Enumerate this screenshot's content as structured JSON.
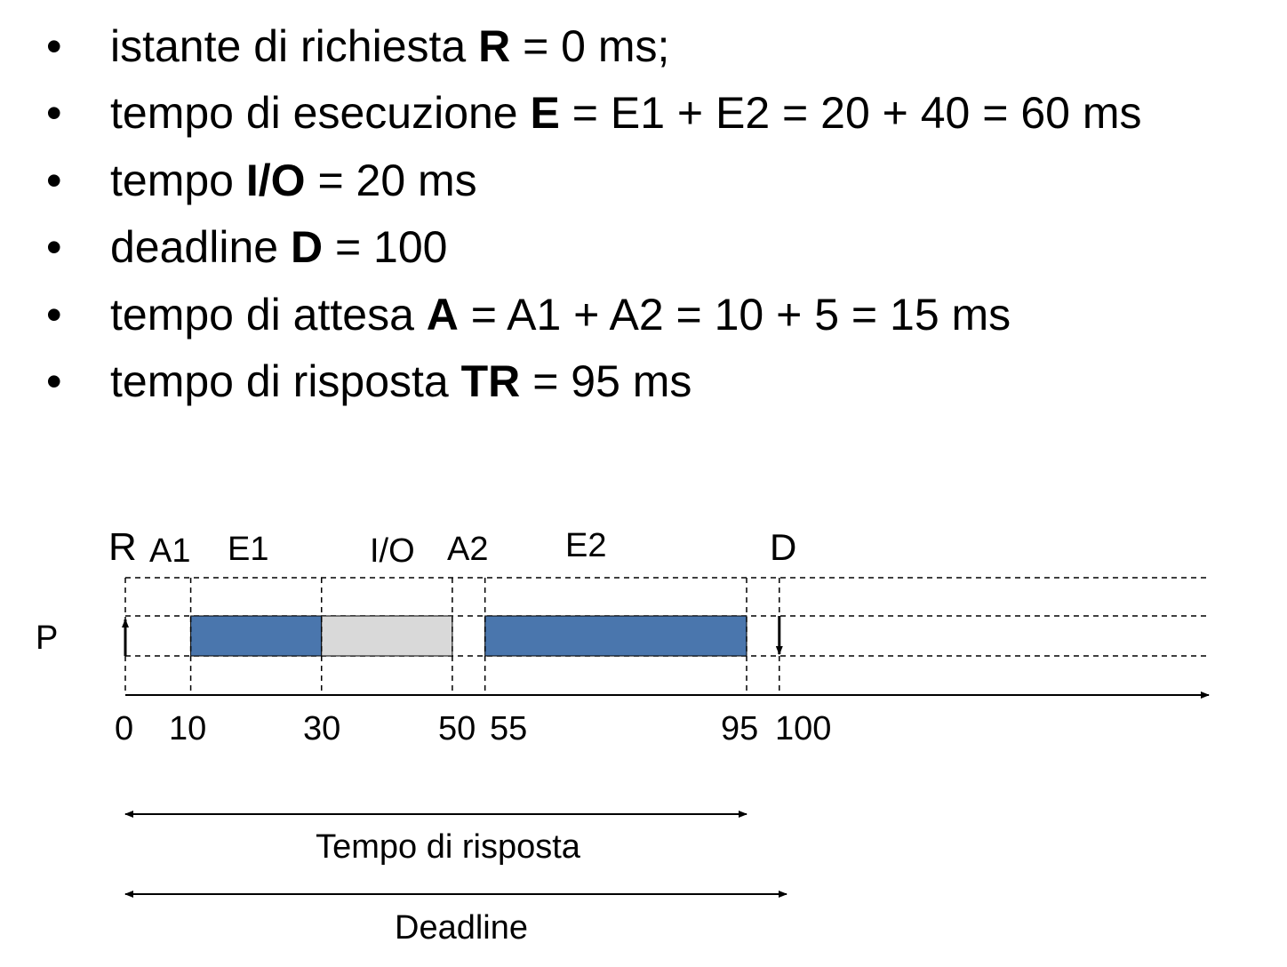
{
  "bullets": [
    {
      "pre": "istante di richiesta ",
      "bold": "R",
      "post": " = 0 ms;"
    },
    {
      "pre": "tempo di esecuzione ",
      "bold": "E",
      "post": " = E1 + E2 = 20 + 40 = 60 ms"
    },
    {
      "pre": "tempo ",
      "bold": "I/O",
      "post": " = 20 ms"
    },
    {
      "pre": "deadline ",
      "bold": "D",
      "post": " = 100"
    },
    {
      "pre": "tempo di attesa ",
      "bold": "A",
      "post": " = A1 + A2 = 10 + 5 = 15 ms"
    },
    {
      "pre": "tempo di risposta ",
      "bold": "TR",
      "post": " = 95 ms"
    }
  ],
  "bullet_symbol": "•",
  "timeline": {
    "process_label": "P",
    "phase_labels": {
      "R": "R",
      "A1": "A1",
      "E1": "E1",
      "IO": "I/O",
      "A2": "A2",
      "E2": "E2",
      "D": "D"
    },
    "ticks": [
      "0",
      "10",
      "30",
      "50",
      "55",
      "95",
      "100"
    ],
    "segments": [
      {
        "name": "E1",
        "start": 10,
        "end": 30,
        "kind": "exec"
      },
      {
        "name": "I/O",
        "start": 30,
        "end": 50,
        "kind": "io"
      },
      {
        "name": "E2",
        "start": 55,
        "end": 95,
        "kind": "exec"
      }
    ],
    "request_time": 0,
    "deadline_time": 100,
    "response_label": "Tempo di risposta",
    "response_end": 95,
    "deadline_label": "Deadline",
    "colors": {
      "exec": "#4a76ad",
      "io": "#d9d9d9"
    }
  }
}
